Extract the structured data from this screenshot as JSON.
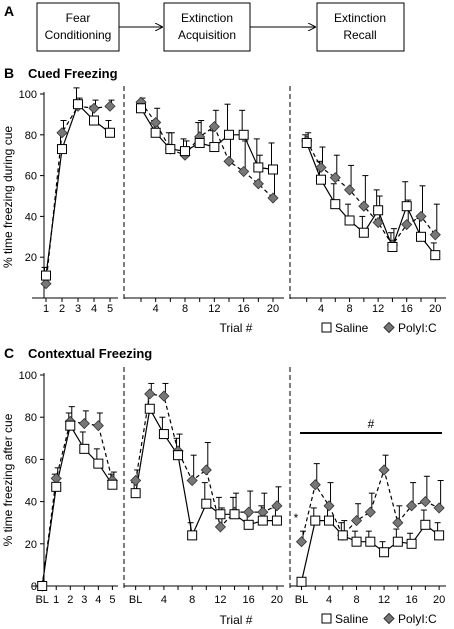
{
  "panel_a": {
    "label": "A",
    "boxes": [
      "Fear Conditioning",
      "Extinction Acquisition",
      "Extinction Recall"
    ]
  },
  "chart_data": [
    {
      "type": "line",
      "panel": "B",
      "title": "Cued Freezing",
      "ylabel": "% time freezing during cue",
      "xlabel": "Trial #",
      "ylim": [
        0,
        100
      ],
      "yticks": [
        20,
        40,
        60,
        80,
        100
      ],
      "legend": {
        "placement": "bottom-right",
        "entries": [
          "Saline",
          "PolyI:C"
        ]
      },
      "segments": [
        {
          "name": "Fear Conditioning",
          "x": [
            1,
            2,
            3,
            4,
            5
          ],
          "xticks": [
            "1",
            "2",
            "3",
            "4",
            "5"
          ],
          "series": [
            {
              "name": "Saline",
              "values": [
                11,
                73,
                95,
                87,
                81
              ],
              "err": [
                4,
                8,
                8,
                7,
                6
              ]
            },
            {
              "name": "PolyI:C",
              "values": [
                7,
                81,
                94,
                93,
                94
              ],
              "err": [
                3,
                6,
                4,
                4,
                3
              ]
            }
          ]
        },
        {
          "name": "Extinction Acquisition",
          "x": [
            2,
            4,
            6,
            8,
            10,
            12,
            14,
            16,
            18,
            20
          ],
          "xticks": [
            "4",
            "8",
            "12",
            "16",
            "20"
          ],
          "series": [
            {
              "name": "Saline",
              "values": [
                93,
                81,
                73,
                72,
                76,
                74,
                80,
                80,
                64,
                63
              ],
              "err": [
                3,
                6,
                8,
                6,
                10,
                8,
                15,
                12,
                14,
                13
              ]
            },
            {
              "name": "PolyI:C",
              "values": [
                96,
                86,
                73,
                70,
                79,
                84,
                67,
                62,
                56,
                49
              ],
              "err": [
                2,
                7,
                8,
                7,
                8,
                8,
                12,
                15,
                14,
                12
              ]
            }
          ]
        },
        {
          "name": "Extinction Recall",
          "x": [
            2,
            4,
            6,
            8,
            10,
            12,
            14,
            16,
            18,
            20
          ],
          "xticks": [
            "4",
            "8",
            "12",
            "16",
            "20"
          ],
          "series": [
            {
              "name": "Saline",
              "values": [
                76,
                58,
                46,
                38,
                32,
                43,
                25,
                45,
                30,
                21
              ],
              "err": [
                4,
                9,
                10,
                8,
                8,
                10,
                7,
                12,
                9,
                6
              ]
            },
            {
              "name": "PolyI:C",
              "values": [
                77,
                64,
                59,
                53,
                45,
                37,
                26,
                36,
                40,
                31
              ],
              "err": [
                4,
                10,
                11,
                12,
                15,
                13,
                8,
                12,
                15,
                15
              ]
            }
          ]
        }
      ]
    },
    {
      "type": "line",
      "panel": "C",
      "title": "Contextual Freezing",
      "ylabel": "% time freezing after cue",
      "xlabel": "Trial #",
      "ylim": [
        0,
        100
      ],
      "yticks": [
        0,
        20,
        40,
        60,
        80,
        100
      ],
      "legend": {
        "placement": "bottom-right",
        "entries": [
          "Saline",
          "PolyI:C"
        ]
      },
      "annotations": [
        "#",
        "*"
      ],
      "segments": [
        {
          "name": "Fear Conditioning",
          "x": [
            0,
            1,
            2,
            3,
            4,
            5
          ],
          "xticks": [
            "BL",
            "1",
            "2",
            "3",
            "4",
            "5"
          ],
          "series": [
            {
              "name": "Saline",
              "values": [
                0,
                47,
                76,
                65,
                58,
                48
              ],
              "err": [
                1,
                6,
                6,
                8,
                7,
                5
              ]
            },
            {
              "name": "PolyI:C",
              "values": [
                0,
                51,
                78,
                77,
                76,
                50
              ],
              "err": [
                1,
                5,
                7,
                6,
                6,
                4
              ]
            }
          ]
        },
        {
          "name": "Extinction Acquisition",
          "x": [
            0,
            2,
            4,
            6,
            8,
            10,
            12,
            14,
            16,
            18,
            20
          ],
          "xticks": [
            "BL",
            "4",
            "8",
            "12",
            "16",
            "20"
          ],
          "series": [
            {
              "name": "Saline",
              "values": [
                44,
                84,
                72,
                62,
                24,
                39,
                34,
                34,
                29,
                31,
                31
              ],
              "err": [
                5,
                7,
                8,
                8,
                6,
                10,
                8,
                8,
                6,
                7,
                6
              ]
            },
            {
              "name": "PolyI:C",
              "values": [
                50,
                91,
                90,
                64,
                50,
                55,
                28,
                35,
                35,
                35,
                38
              ],
              "err": [
                5,
                5,
                6,
                8,
                12,
                13,
                9,
                9,
                10,
                9,
                9
              ]
            }
          ]
        },
        {
          "name": "Extinction Recall",
          "x": [
            0,
            2,
            4,
            6,
            8,
            10,
            12,
            14,
            16,
            18,
            20
          ],
          "xticks": [
            "BL",
            "4",
            "8",
            "12",
            "16",
            "20"
          ],
          "series": [
            {
              "name": "Saline",
              "values": [
                2,
                31,
                31,
                24,
                21,
                21,
                16,
                21,
                20,
                29,
                24
              ],
              "err": [
                1,
                6,
                7,
                6,
                5,
                5,
                5,
                6,
                5,
                7,
                6
              ]
            },
            {
              "name": "PolyI:C",
              "values": [
                21,
                48,
                38,
                24,
                31,
                35,
                55,
                30,
                38,
                40,
                37
              ],
              "err": [
                5,
                10,
                11,
                7,
                8,
                9,
                7,
                8,
                11,
                12,
                13
              ]
            }
          ]
        }
      ]
    }
  ]
}
